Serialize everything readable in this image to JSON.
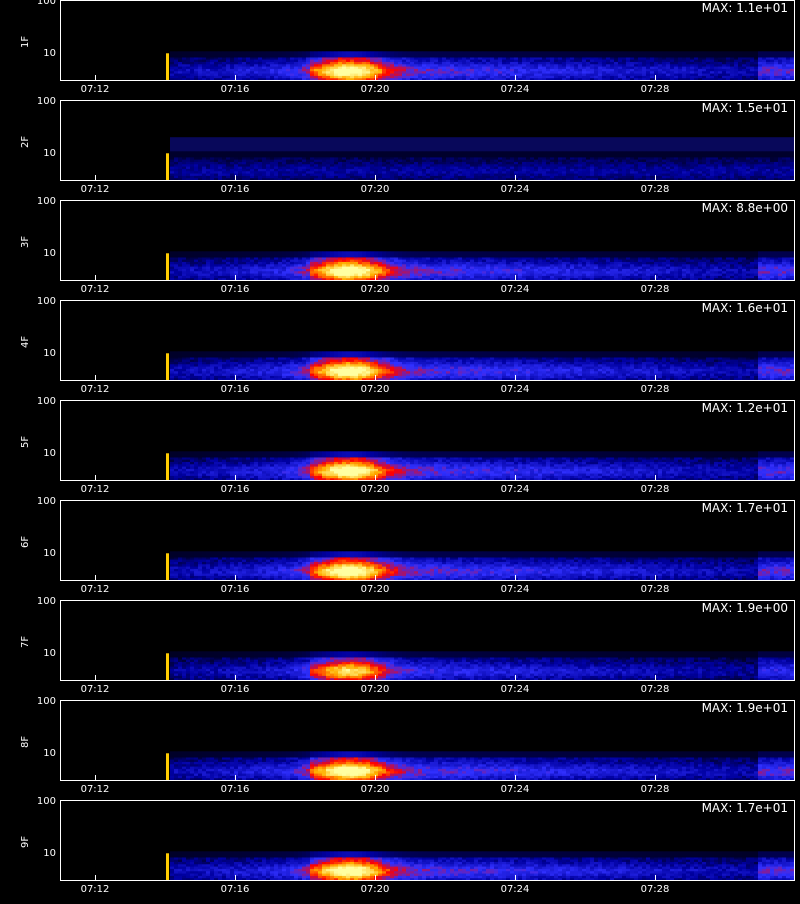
{
  "chart_data": [
    {
      "type": "heatmap",
      "panel_label": "1F",
      "max_label": "MAX: 1.1e+01",
      "y_ticks": [
        "100",
        "10"
      ],
      "x_ticks": [
        "07:12",
        "07:16",
        "07:20",
        "07:24",
        "07:28"
      ],
      "max_value": 11
    },
    {
      "type": "heatmap",
      "panel_label": "2F",
      "max_label": "MAX: 1.5e+01",
      "y_ticks": [
        "100",
        "10"
      ],
      "x_ticks": [
        "07:12",
        "07:16",
        "07:20",
        "07:24",
        "07:28"
      ],
      "max_value": 15
    },
    {
      "type": "heatmap",
      "panel_label": "3F",
      "max_label": "MAX: 8.8e+00",
      "y_ticks": [
        "100",
        "10"
      ],
      "x_ticks": [
        "07:12",
        "07:16",
        "07:20",
        "07:24",
        "07:28"
      ],
      "max_value": 8.8
    },
    {
      "type": "heatmap",
      "panel_label": "4F",
      "max_label": "MAX: 1.6e+01",
      "y_ticks": [
        "100",
        "10"
      ],
      "x_ticks": [
        "07:12",
        "07:16",
        "07:20",
        "07:24",
        "07:28"
      ],
      "max_value": 16
    },
    {
      "type": "heatmap",
      "panel_label": "5F",
      "max_label": "MAX: 1.2e+01",
      "y_ticks": [
        "100",
        "10"
      ],
      "x_ticks": [
        "07:12",
        "07:16",
        "07:20",
        "07:24",
        "07:28"
      ],
      "max_value": 12
    },
    {
      "type": "heatmap",
      "panel_label": "6F",
      "max_label": "MAX: 1.7e+01",
      "y_ticks": [
        "100",
        "10"
      ],
      "x_ticks": [
        "07:12",
        "07:16",
        "07:20",
        "07:24",
        "07:28"
      ],
      "max_value": 17
    },
    {
      "type": "heatmap",
      "panel_label": "7F",
      "max_label": "MAX: 1.9e+00",
      "y_ticks": [
        "100",
        "10"
      ],
      "x_ticks": [
        "07:12",
        "07:16",
        "07:20",
        "07:24",
        "07:28"
      ],
      "max_value": 1.9
    },
    {
      "type": "heatmap",
      "panel_label": "8F",
      "max_label": "MAX: 1.9e+01",
      "y_ticks": [
        "100",
        "10"
      ],
      "x_ticks": [
        "07:12",
        "07:16",
        "07:20",
        "07:24",
        "07:28"
      ],
      "max_value": 19
    },
    {
      "type": "heatmap",
      "panel_label": "9F",
      "max_label": "MAX: 1.7e+01",
      "y_ticks": [
        "100",
        "10"
      ],
      "x_ticks": [
        "07:12",
        "07:16",
        "07:20",
        "07:24",
        "07:28"
      ],
      "max_value": 17
    }
  ],
  "x_axis": {
    "title": "",
    "start": "07:11",
    "end": "07:32",
    "data_start": "07:14"
  },
  "y_axis": {
    "scale": "log",
    "range": [
      3,
      110
    ]
  },
  "colormap": [
    "#000000",
    "#0000a0",
    "#3030ff",
    "#ff0000",
    "#ffb000",
    "#ffffa0"
  ]
}
